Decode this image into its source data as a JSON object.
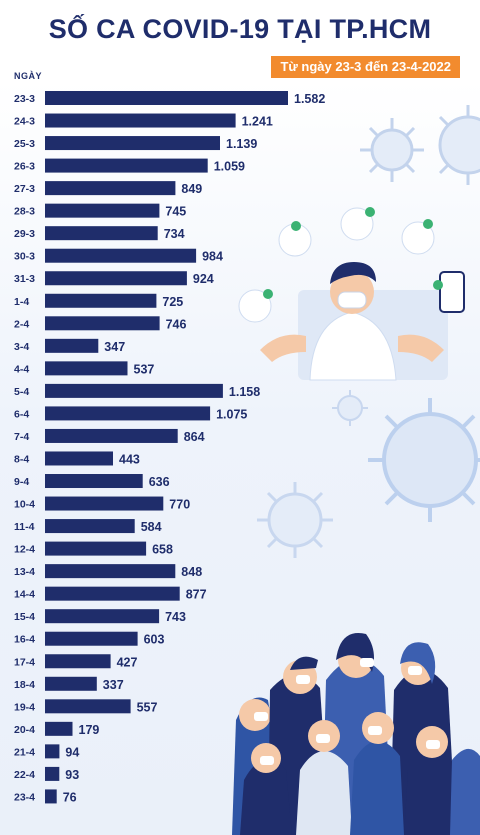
{
  "title": "SỐ CA COVID-19 TẠI TP.HCM",
  "subtitle": "Từ ngày 23-3 đến 23-4-2022",
  "colors": {
    "bar": "#1f2d6b",
    "accent": "#f28b2e",
    "text": "#1f2d6b",
    "virus": "#b9cbe8"
  },
  "chart_data": {
    "type": "bar",
    "orientation": "horizontal",
    "ylabel": "NGÀY",
    "categories": [
      "23-3",
      "24-3",
      "25-3",
      "26-3",
      "27-3",
      "28-3",
      "29-3",
      "30-3",
      "31-3",
      "1-4",
      "2-4",
      "3-4",
      "4-4",
      "5-4",
      "6-4",
      "7-4",
      "8-4",
      "9-4",
      "10-4",
      "11-4",
      "12-4",
      "13-4",
      "14-4",
      "15-4",
      "16-4",
      "17-4",
      "18-4",
      "19-4",
      "20-4",
      "21-4",
      "22-4",
      "23-4"
    ],
    "values": [
      1582,
      1241,
      1139,
      1059,
      849,
      745,
      734,
      984,
      924,
      725,
      746,
      347,
      537,
      1158,
      1075,
      864,
      443,
      636,
      770,
      584,
      658,
      848,
      877,
      743,
      603,
      427,
      337,
      557,
      179,
      94,
      93,
      76
    ],
    "value_labels": [
      "1.582",
      "1.241",
      "1.139",
      "1.059",
      "849",
      "745",
      "734",
      "984",
      "924",
      "725",
      "746",
      "347",
      "537",
      "1.158",
      "1.075",
      "864",
      "443",
      "636",
      "770",
      "584",
      "658",
      "848",
      "877",
      "743",
      "603",
      "427",
      "337",
      "557",
      "179",
      "94",
      "93",
      "76"
    ],
    "xlim": [
      0,
      1582
    ],
    "grid": false,
    "legend": "none"
  }
}
